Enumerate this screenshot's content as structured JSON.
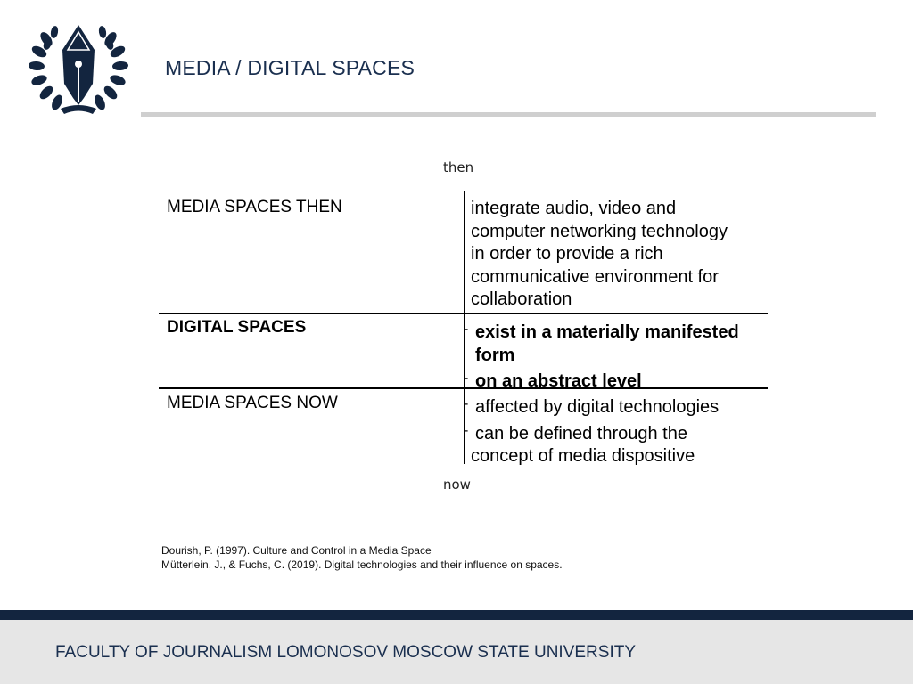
{
  "header": {
    "title": "MEDIA / DIGITAL SPACES",
    "logo_icon": "fountain-pen-nib-laurel-icon"
  },
  "timeline": {
    "top_label": "then",
    "bottom_label": "now"
  },
  "rows": [
    {
      "label": "MEDIA SPACES THEN",
      "lines": [
        "integrate audio, video and",
        "computer networking technology",
        "in order to provide a rich",
        "communicative environment for",
        "collaboration"
      ]
    },
    {
      "label": "DIGITAL SPACES",
      "lines": [
        "exist in a materially manifested",
        "form",
        "on an abstract level"
      ]
    },
    {
      "label": "MEDIA SPACES NOW",
      "lines": [
        "affected by digital technologies",
        "can be defined through the",
        "concept of media dispositive"
      ]
    }
  ],
  "references": [
    "Dourish, P. (1997). Culture and Control in a Media Space",
    "Mütterlein, J., & Fuchs, C. (2019). Digital technologies and their influence on spaces."
  ],
  "footer": {
    "text": "FACULTY OF JOURNALISM LOMONOSOV MOSCOW STATE UNIVERSITY"
  },
  "colors": {
    "navy": "#13253f",
    "title_text": "#1a2f4f",
    "rule_gray": "#cfcfcf",
    "footer_bg": "#e6e6e6"
  }
}
